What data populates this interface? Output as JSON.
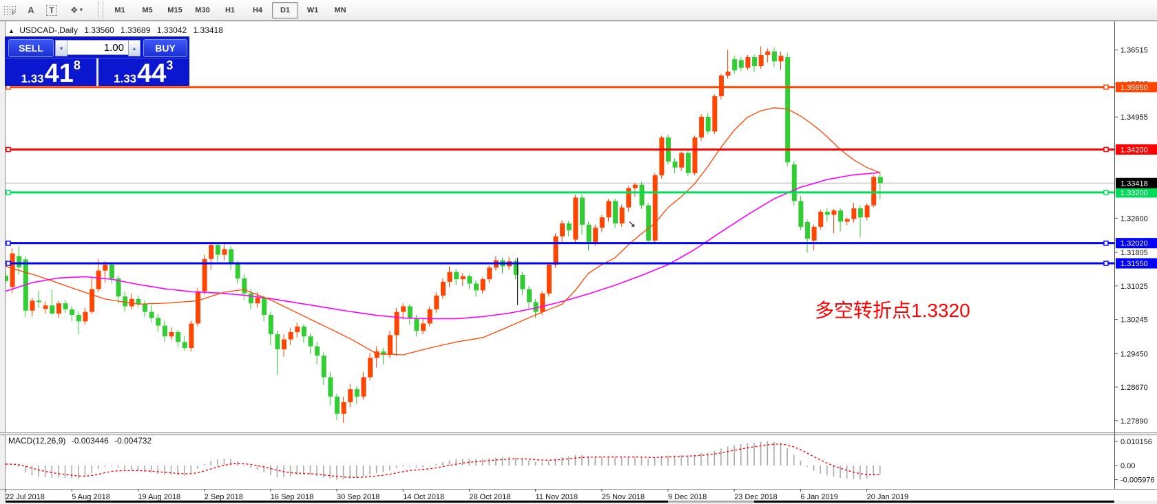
{
  "toolbar": {
    "tools": [
      {
        "id": "chart-grid",
        "label": "F"
      },
      {
        "id": "text-label",
        "label": "A"
      },
      {
        "id": "text-box",
        "label": "T"
      },
      {
        "id": "shapes",
        "label": "❖"
      }
    ],
    "dropdown_caret": "▾",
    "timeframes": [
      "M1",
      "M5",
      "M15",
      "M30",
      "H1",
      "H4",
      "D1",
      "W1",
      "MN"
    ],
    "active_timeframe": "D1"
  },
  "title": {
    "expander": "▲",
    "symbol": "USDCAD-,Daily",
    "open": "1.33560",
    "high": "1.33689",
    "low": "1.33042",
    "close": "1.33418"
  },
  "trade_panel": {
    "sell_label": "SELL",
    "buy_label": "BUY",
    "volume": "1.00",
    "spin_down": "▾",
    "spin_up": "▴",
    "sell_price_prefix": "1.33",
    "sell_price_big": "41",
    "sell_price_sup": "8",
    "buy_price_prefix": "1.33",
    "buy_price_big": "44",
    "buy_price_sup": "3"
  },
  "annotation": {
    "text": "多空转折点1.3320",
    "color": "#FF0000"
  },
  "macd_panel": {
    "label": "MACD(12,26,9)",
    "main_value": "-0.003446",
    "signal_value": "-0.004732",
    "axis_labels": [
      {
        "text": "0.010156",
        "value": 0.010156
      },
      {
        "text": "0.00",
        "value": 0.0
      },
      {
        "text": "-0.005976",
        "value": -0.005976
      }
    ]
  },
  "price_axis": {
    "ticks": [
      {
        "text": "1.36515",
        "value": 1.36515
      },
      {
        "text": "1.35725",
        "value": 1.35725
      },
      {
        "text": "1.34955",
        "value": 1.34955
      },
      {
        "text": "1.32600",
        "value": 1.326
      },
      {
        "text": "1.31805",
        "value": 1.31805
      },
      {
        "text": "1.31025",
        "value": 1.31025
      },
      {
        "text": "1.30245",
        "value": 1.30245
      },
      {
        "text": "1.29450",
        "value": 1.2945
      },
      {
        "text": "1.28670",
        "value": 1.2867
      },
      {
        "text": "1.27890",
        "value": 1.2789
      }
    ],
    "current_price": {
      "text": "1.33418",
      "value": 1.33418,
      "bg": "#000000",
      "fg": "#ffffff"
    }
  },
  "time_axis": {
    "dates": [
      "22 Jul 2018",
      "5 Aug 2018",
      "19 Aug 2018",
      "2 Sep 2018",
      "16 Sep 2018",
      "30 Sep 2018",
      "14 Oct 2018",
      "28 Oct 2018",
      "11 Nov 2018",
      "25 Nov 2018",
      "9 Dec 2018",
      "23 Dec 2018",
      "6 Jan 2019",
      "20 Jan 2019"
    ]
  },
  "chart_data": {
    "type": "candlestick",
    "colors": {
      "up": "#FF4500",
      "down": "#32CD32",
      "ma_fast": "#FF4500",
      "ma_slow": "#FF00FF",
      "histogram": "#ABABAB",
      "signal": "#FF0000",
      "current_line": "#B4B4B4"
    },
    "hlines": [
      {
        "price": 1.3565,
        "label": "1.35650",
        "color": "#FF4500",
        "width": 3
      },
      {
        "price": 1.342,
        "label": "1.34200",
        "color": "#FF0000",
        "width": 3
      },
      {
        "price": 1.332,
        "label": "1.33200",
        "color": "#00DC5A",
        "width": 3
      },
      {
        "price": 1.3202,
        "label": "1.32020",
        "color": "#0000FF",
        "width": 3
      },
      {
        "price": 1.3155,
        "label": "1.31550",
        "color": "#0000FF",
        "width": 3
      }
    ],
    "candles": [
      [
        1.3126,
        1.314,
        1.3108,
        1.3114
      ],
      [
        1.31,
        1.319,
        1.3085,
        1.3178
      ],
      [
        1.3172,
        1.3196,
        1.3128,
        1.3146
      ],
      [
        1.3164,
        1.3172,
        1.303,
        1.3045
      ],
      [
        1.3045,
        1.3075,
        1.3032,
        1.3068
      ],
      [
        1.3068,
        1.3092,
        1.3052,
        1.3065
      ],
      [
        1.3049,
        1.3066,
        1.3038,
        1.3057
      ],
      [
        1.3057,
        1.3094,
        1.3036,
        1.3038
      ],
      [
        1.3038,
        1.3068,
        1.3028,
        1.3062
      ],
      [
        1.3062,
        1.307,
        1.304,
        1.3048
      ],
      [
        1.3048,
        1.3056,
        1.302,
        1.3035
      ],
      [
        1.3035,
        1.3044,
        1.299,
        1.302
      ],
      [
        1.302,
        1.3052,
        1.3012,
        1.3042
      ],
      [
        1.3042,
        1.312,
        1.3038,
        1.3095
      ],
      [
        1.3095,
        1.3165,
        1.3088,
        1.3138
      ],
      [
        1.3138,
        1.316,
        1.311,
        1.3152
      ],
      [
        1.3152,
        1.3158,
        1.3108,
        1.312
      ],
      [
        1.312,
        1.3126,
        1.3062,
        1.3078
      ],
      [
        1.3078,
        1.309,
        1.3042,
        1.3055
      ],
      [
        1.3055,
        1.3085,
        1.3048,
        1.3072
      ],
      [
        1.3072,
        1.308,
        1.3052,
        1.306
      ],
      [
        1.306,
        1.3068,
        1.303,
        1.3042
      ],
      [
        1.3042,
        1.3058,
        1.3018,
        1.3028
      ],
      [
        1.3028,
        1.3038,
        1.2996,
        1.301
      ],
      [
        1.301,
        1.3022,
        1.2972,
        1.2985
      ],
      [
        1.2985,
        1.3006,
        1.2976,
        1.2995
      ],
      [
        1.2995,
        1.3,
        1.296,
        1.2972
      ],
      [
        1.2972,
        1.2986,
        1.2952,
        1.2958
      ],
      [
        1.2958,
        1.3022,
        1.295,
        1.3015
      ],
      [
        1.3015,
        1.3098,
        1.3008,
        1.309
      ],
      [
        1.309,
        1.3175,
        1.3082,
        1.3165
      ],
      [
        1.3165,
        1.3205,
        1.314,
        1.3198
      ],
      [
        1.3198,
        1.3204,
        1.3158,
        1.3175
      ],
      [
        1.3175,
        1.3202,
        1.3162,
        1.3188
      ],
      [
        1.3188,
        1.3196,
        1.314,
        1.3155
      ],
      [
        1.3155,
        1.3162,
        1.3108,
        1.312
      ],
      [
        1.312,
        1.313,
        1.307,
        1.3085
      ],
      [
        1.3085,
        1.3095,
        1.3048,
        1.3062
      ],
      [
        1.3062,
        1.3088,
        1.3052,
        1.3075
      ],
      [
        1.3075,
        1.308,
        1.302,
        1.3035
      ],
      [
        1.3035,
        1.3042,
        1.2965,
        1.299
      ],
      [
        1.299,
        1.2998,
        1.2895,
        1.2955
      ],
      [
        1.2955,
        1.299,
        1.2938,
        1.2978
      ],
      [
        1.2978,
        1.3005,
        1.2965,
        1.2995
      ],
      [
        1.2995,
        1.3018,
        1.2982,
        1.3008
      ],
      [
        1.3008,
        1.3014,
        1.297,
        1.2985
      ],
      [
        1.2985,
        1.2992,
        1.2945,
        1.2962
      ],
      [
        1.2962,
        1.2972,
        1.292,
        1.294
      ],
      [
        1.294,
        1.2948,
        1.2872,
        1.289
      ],
      [
        1.289,
        1.2902,
        1.2825,
        1.2845
      ],
      [
        1.2845,
        1.2852,
        1.279,
        1.2805
      ],
      [
        1.2805,
        1.2845,
        1.2784,
        1.2832
      ],
      [
        1.2832,
        1.2874,
        1.282,
        1.2862
      ],
      [
        1.2862,
        1.287,
        1.2828,
        1.2845
      ],
      [
        1.2845,
        1.2902,
        1.2838,
        1.289
      ],
      [
        1.289,
        1.2946,
        1.2882,
        1.2935
      ],
      [
        1.2935,
        1.2962,
        1.2912,
        1.295
      ],
      [
        1.295,
        1.2958,
        1.292,
        1.2942
      ],
      [
        1.2942,
        1.2998,
        1.2935,
        1.2988
      ],
      [
        1.2988,
        1.3052,
        1.294,
        1.3042
      ],
      [
        1.3042,
        1.3062,
        1.3025,
        1.3055
      ],
      [
        1.3055,
        1.306,
        1.3012,
        1.3028
      ],
      [
        1.3028,
        1.3035,
        1.2985,
        1.2998
      ],
      [
        1.2998,
        1.3025,
        1.299,
        1.3015
      ],
      [
        1.3015,
        1.3055,
        1.3008,
        1.3048
      ],
      [
        1.3048,
        1.3088,
        1.304,
        1.308
      ],
      [
        1.308,
        1.312,
        1.3072,
        1.3112
      ],
      [
        1.3112,
        1.3148,
        1.31,
        1.3135
      ],
      [
        1.3135,
        1.3142,
        1.3105,
        1.3118
      ],
      [
        1.3118,
        1.3132,
        1.3102,
        1.3125
      ],
      [
        1.3125,
        1.313,
        1.3095,
        1.3108
      ],
      [
        1.3108,
        1.3115,
        1.3078,
        1.3092
      ],
      [
        1.3092,
        1.3122,
        1.3085,
        1.3118
      ],
      [
        1.3118,
        1.315,
        1.311,
        1.3145
      ],
      [
        1.3145,
        1.3172,
        1.3138,
        1.3162
      ],
      [
        1.3162,
        1.3168,
        1.3132,
        1.3148
      ],
      [
        1.3148,
        1.317,
        1.314,
        1.316
      ],
      [
        1.316,
        1.3165,
        1.3118,
        1.3128
      ],
      [
        1.3128,
        1.3135,
        1.3082,
        1.3095
      ],
      [
        1.3095,
        1.3102,
        1.3048,
        1.3065
      ],
      [
        1.3065,
        1.3072,
        1.3028,
        1.3042
      ],
      [
        1.3042,
        1.309,
        1.3035,
        1.3085
      ],
      [
        1.3085,
        1.3158,
        1.3078,
        1.3152
      ],
      [
        1.3152,
        1.3225,
        1.3145,
        1.3218
      ],
      [
        1.3218,
        1.3256,
        1.3205,
        1.3248
      ],
      [
        1.3248,
        1.3254,
        1.3218,
        1.3232
      ],
      [
        1.321,
        1.3315,
        1.3202,
        1.3308
      ],
      [
        1.3308,
        1.3316,
        1.3222,
        1.3245
      ],
      [
        1.3245,
        1.3252,
        1.3185,
        1.3205
      ],
      [
        1.3205,
        1.3245,
        1.3196,
        1.3238
      ],
      [
        1.3238,
        1.3268,
        1.3228,
        1.3262
      ],
      [
        1.3262,
        1.3305,
        1.3252,
        1.33
      ],
      [
        1.33,
        1.3306,
        1.3238,
        1.3248
      ],
      [
        1.3248,
        1.3292,
        1.324,
        1.3285
      ],
      [
        1.3285,
        1.3335,
        1.3275,
        1.333
      ],
      [
        1.333,
        1.3342,
        1.331,
        1.3338
      ],
      [
        1.3338,
        1.3344,
        1.3282,
        1.329
      ],
      [
        1.329,
        1.3296,
        1.3202,
        1.3208
      ],
      [
        1.3208,
        1.3365,
        1.3202,
        1.336
      ],
      [
        1.336,
        1.3452,
        1.3352,
        1.3448
      ],
      [
        1.3448,
        1.3455,
        1.3385,
        1.3392
      ],
      [
        1.3392,
        1.34,
        1.3365,
        1.3378
      ],
      [
        1.3378,
        1.3415,
        1.337,
        1.3412
      ],
      [
        1.3412,
        1.3418,
        1.3358,
        1.3365
      ],
      [
        1.3365,
        1.3452,
        1.336,
        1.3448
      ],
      [
        1.3448,
        1.3502,
        1.344,
        1.3496
      ],
      [
        1.3496,
        1.3505,
        1.3455,
        1.3462
      ],
      [
        1.3462,
        1.3548,
        1.3456,
        1.3544
      ],
      [
        1.3544,
        1.3596,
        1.3536,
        1.3592
      ],
      [
        1.3592,
        1.3652,
        1.3585,
        1.3601
      ],
      [
        1.363,
        1.3638,
        1.3596,
        1.3604
      ],
      [
        1.3628,
        1.3635,
        1.3602,
        1.361
      ],
      [
        1.361,
        1.364,
        1.3605,
        1.3635
      ],
      [
        1.3635,
        1.3642,
        1.36,
        1.3614
      ],
      [
        1.3614,
        1.366,
        1.3608,
        1.364
      ],
      [
        1.364,
        1.3655,
        1.3622,
        1.3648
      ],
      [
        1.3648,
        1.3658,
        1.3612,
        1.3625
      ],
      [
        1.3625,
        1.3648,
        1.3605,
        1.3638
      ],
      [
        1.3635,
        1.3645,
        1.338,
        1.339
      ],
      [
        1.3385,
        1.3392,
        1.329,
        1.33
      ],
      [
        1.33,
        1.3312,
        1.3232,
        1.324
      ],
      [
        1.3251,
        1.3258,
        1.318,
        1.3212
      ],
      [
        1.3208,
        1.3245,
        1.3185,
        1.324
      ],
      [
        1.324,
        1.328,
        1.3234,
        1.3275
      ],
      [
        1.3275,
        1.3283,
        1.3252,
        1.3268
      ],
      [
        1.3268,
        1.3282,
        1.3225,
        1.3278
      ],
      [
        1.3278,
        1.3284,
        1.3229,
        1.3252
      ],
      [
        1.3252,
        1.3262,
        1.3244,
        1.3258
      ],
      [
        1.3258,
        1.3296,
        1.325,
        1.3283
      ],
      [
        1.3283,
        1.329,
        1.3215,
        1.3262
      ],
      [
        1.3262,
        1.3295,
        1.3255,
        1.329
      ],
      [
        1.329,
        1.336,
        1.3285,
        1.3356
      ],
      [
        1.3356,
        1.3369,
        1.3304,
        1.3342
      ]
    ],
    "ma_fast_anchors": [
      [
        0,
        1.3148
      ],
      [
        5,
        1.3125
      ],
      [
        10,
        1.3098
      ],
      [
        15,
        1.3072
      ],
      [
        20,
        1.306
      ],
      [
        25,
        1.3063
      ],
      [
        29,
        1.3068
      ],
      [
        33,
        1.3088
      ],
      [
        36,
        1.3094
      ],
      [
        40,
        1.307
      ],
      [
        44,
        1.304
      ],
      [
        48,
        1.301
      ],
      [
        52,
        1.298
      ],
      [
        56,
        1.2945
      ],
      [
        60,
        1.2942
      ],
      [
        64,
        1.2958
      ],
      [
        68,
        1.2972
      ],
      [
        72,
        1.2982
      ],
      [
        76,
        1.3008
      ],
      [
        80,
        1.3035
      ],
      [
        84,
        1.306
      ],
      [
        86,
        1.3092
      ],
      [
        88,
        1.3132
      ],
      [
        90,
        1.3152
      ],
      [
        92,
        1.3168
      ],
      [
        94,
        1.3198
      ],
      [
        96,
        1.3224
      ],
      [
        98,
        1.3248
      ],
      [
        100,
        1.3285
      ],
      [
        102,
        1.331
      ],
      [
        104,
        1.334
      ],
      [
        106,
        1.338
      ],
      [
        108,
        1.3425
      ],
      [
        110,
        1.3465
      ],
      [
        112,
        1.3495
      ],
      [
        114,
        1.351
      ],
      [
        116,
        1.3517
      ],
      [
        118,
        1.3514
      ],
      [
        120,
        1.3498
      ],
      [
        122,
        1.3476
      ],
      [
        124,
        1.345
      ],
      [
        126,
        1.342
      ],
      [
        128,
        1.3396
      ],
      [
        130,
        1.3378
      ],
      [
        132,
        1.3366
      ]
    ],
    "ma_slow_anchors": [
      [
        0,
        1.309
      ],
      [
        4,
        1.311
      ],
      [
        8,
        1.3121
      ],
      [
        12,
        1.3124
      ],
      [
        16,
        1.3118
      ],
      [
        20,
        1.3106
      ],
      [
        24,
        1.3096
      ],
      [
        28,
        1.3089
      ],
      [
        32,
        1.3086
      ],
      [
        36,
        1.3081
      ],
      [
        40,
        1.3073
      ],
      [
        44,
        1.3063
      ],
      [
        48,
        1.3053
      ],
      [
        52,
        1.3043
      ],
      [
        56,
        1.3034
      ],
      [
        60,
        1.3028
      ],
      [
        64,
        1.3026
      ],
      [
        68,
        1.3026
      ],
      [
        72,
        1.3031
      ],
      [
        76,
        1.3039
      ],
      [
        80,
        1.3051
      ],
      [
        84,
        1.3066
      ],
      [
        88,
        1.3084
      ],
      [
        92,
        1.3104
      ],
      [
        96,
        1.3127
      ],
      [
        100,
        1.3152
      ],
      [
        104,
        1.3187
      ],
      [
        108,
        1.3228
      ],
      [
        112,
        1.3268
      ],
      [
        116,
        1.3305
      ],
      [
        120,
        1.3332
      ],
      [
        124,
        1.335
      ],
      [
        128,
        1.3361
      ],
      [
        132,
        1.3366
      ]
    ],
    "macd_histogram": [
      0.0006,
      0.0002,
      -0.0005,
      -0.003,
      -0.0042,
      -0.0048,
      -0.005,
      -0.0052,
      -0.005,
      -0.0052,
      -0.0055,
      -0.0056,
      -0.0048,
      -0.0032,
      -0.0015,
      -0.0005,
      -0.0004,
      -0.001,
      -0.0018,
      -0.002,
      -0.0022,
      -0.0026,
      -0.003,
      -0.0035,
      -0.004,
      -0.004,
      -0.0042,
      -0.0043,
      -0.0032,
      -0.0014,
      0.0006,
      0.002,
      0.0026,
      0.003,
      0.0028,
      0.0018,
      0.0004,
      -0.001,
      -0.0018,
      -0.0028,
      -0.004,
      -0.005,
      -0.005,
      -0.0046,
      -0.004,
      -0.0038,
      -0.004,
      -0.0046,
      -0.005,
      -0.0056,
      -0.006,
      -0.0058,
      -0.0054,
      -0.0052,
      -0.0046,
      -0.0038,
      -0.0032,
      -0.0028,
      -0.002,
      -0.001,
      -0.0004,
      -0.0004,
      -0.0008,
      -0.0008,
      -0.0002,
      0.0006,
      0.0014,
      0.0022,
      0.0026,
      0.0028,
      0.0028,
      0.0026,
      0.0027,
      0.003,
      0.0033,
      0.0034,
      0.0035,
      0.0032,
      0.0028,
      0.0022,
      0.0016,
      0.0015,
      0.002,
      0.0028,
      0.0035,
      0.0038,
      0.0044,
      0.0044,
      0.004,
      0.0038,
      0.0037,
      0.0038,
      0.0036,
      0.0035,
      0.0036,
      0.0037,
      0.0034,
      0.0028,
      0.0032,
      0.004,
      0.0042,
      0.0042,
      0.0044,
      0.0042,
      0.0046,
      0.0052,
      0.0054,
      0.0062,
      0.0072,
      0.008,
      0.0086,
      0.009,
      0.0094,
      0.0096,
      0.01,
      0.0102,
      0.01,
      0.0095,
      0.0072,
      0.0045,
      0.002,
      -0.0005,
      -0.0022,
      -0.0034,
      -0.0042,
      -0.0048,
      -0.0052,
      -0.0056,
      -0.0058,
      -0.006,
      -0.0055,
      -0.0042,
      -0.0034
    ],
    "macd_signal_period": 9,
    "objects": {
      "vline_segment": {
        "bar": 77.3,
        "price_top": 1.3168,
        "price_bottom": 1.3058
      },
      "arrow": {
        "bar": 94.6,
        "price": 1.3248,
        "glyph": "↘"
      }
    }
  }
}
